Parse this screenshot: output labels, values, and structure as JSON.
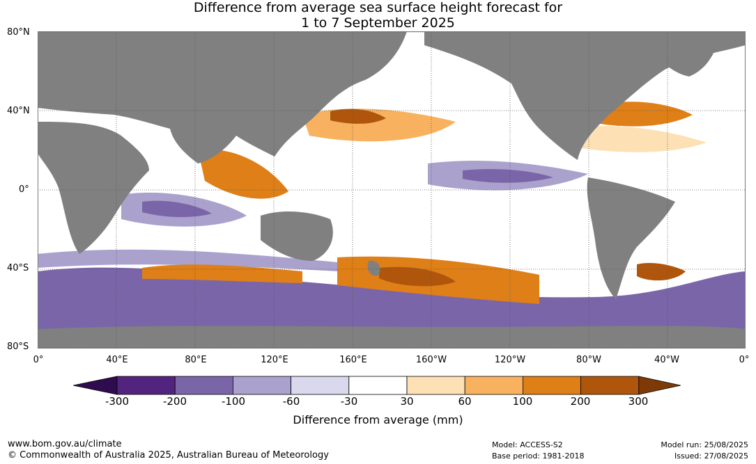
{
  "title": {
    "line1": "Difference from average sea surface height forecast for",
    "line2": "1 to 7 September 2025"
  },
  "map": {
    "latitude_labels": [
      "80°N",
      "40°N",
      "0°",
      "40°S",
      "80°S"
    ],
    "longitude_labels": [
      "0°",
      "40°E",
      "80°E",
      "120°E",
      "160°E",
      "160°W",
      "120°W",
      "80°W",
      "40°W",
      "0°"
    ],
    "land_color": "#808080",
    "ocean_color": "#ffffff"
  },
  "colorbar": {
    "ticks": [
      "-300",
      "-200",
      "-100",
      "-60",
      "-30",
      "30",
      "60",
      "100",
      "200",
      "300"
    ],
    "colors": [
      "#2f0c4e",
      "#53247f",
      "#7a65a9",
      "#aaa2cd",
      "#d9d8ec",
      "#ffffff",
      "#fde0b4",
      "#f8b25f",
      "#df7f17",
      "#af560c",
      "#7d3a07"
    ],
    "label": "Difference from average (mm)"
  },
  "footer": {
    "website": "www.bom.gov.au/climate",
    "copyright": "© Commonwealth of Australia 2025, Australian Bureau of Meteorology",
    "model": "Model: ACCESS-S2",
    "base_period": "Base period: 1981-2018",
    "model_run": "Model run: 25/08/2025",
    "issued": "Issued: 27/08/2025"
  }
}
